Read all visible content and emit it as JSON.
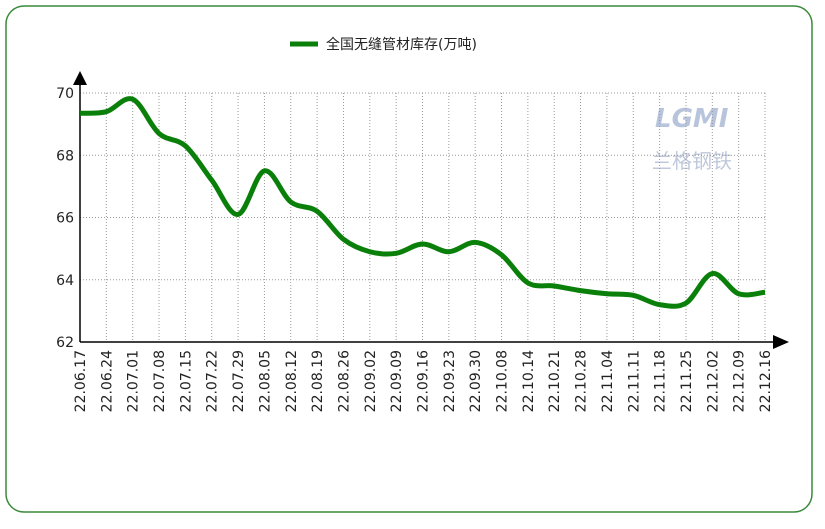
{
  "chart_data": {
    "type": "line",
    "series": [
      {
        "name": "全国无缝管材库存(万吨)",
        "color": "#0a800a",
        "values": [
          69.35,
          69.4,
          69.8,
          68.7,
          68.3,
          67.2,
          66.1,
          67.5,
          66.5,
          66.2,
          65.3,
          64.9,
          64.85,
          65.15,
          64.9,
          65.2,
          64.8,
          63.9,
          63.8,
          63.65,
          63.55,
          63.5,
          63.2,
          63.25,
          64.2,
          63.55,
          63.6
        ]
      }
    ],
    "categories": [
      "22.06.17",
      "22.06.24",
      "22.07.01",
      "22.07.08",
      "22.07.15",
      "22.07.22",
      "22.07.29",
      "22.08.05",
      "22.08.12",
      "22.08.19",
      "22.08.26",
      "22.09.02",
      "22.09.09",
      "22.09.16",
      "22.09.23",
      "22.09.30",
      "22.10.08",
      "22.10.14",
      "22.10.21",
      "22.10.28",
      "22.11.04",
      "22.11.11",
      "22.11.18",
      "22.11.25",
      "22.12.02",
      "22.12.09",
      "22.12.16"
    ],
    "ylim": [
      62,
      70
    ],
    "yticks": [
      62,
      64,
      66,
      68,
      70
    ],
    "grid": true,
    "watermark_logo": "LGMI",
    "watermark_text": "兰格钢铁"
  }
}
